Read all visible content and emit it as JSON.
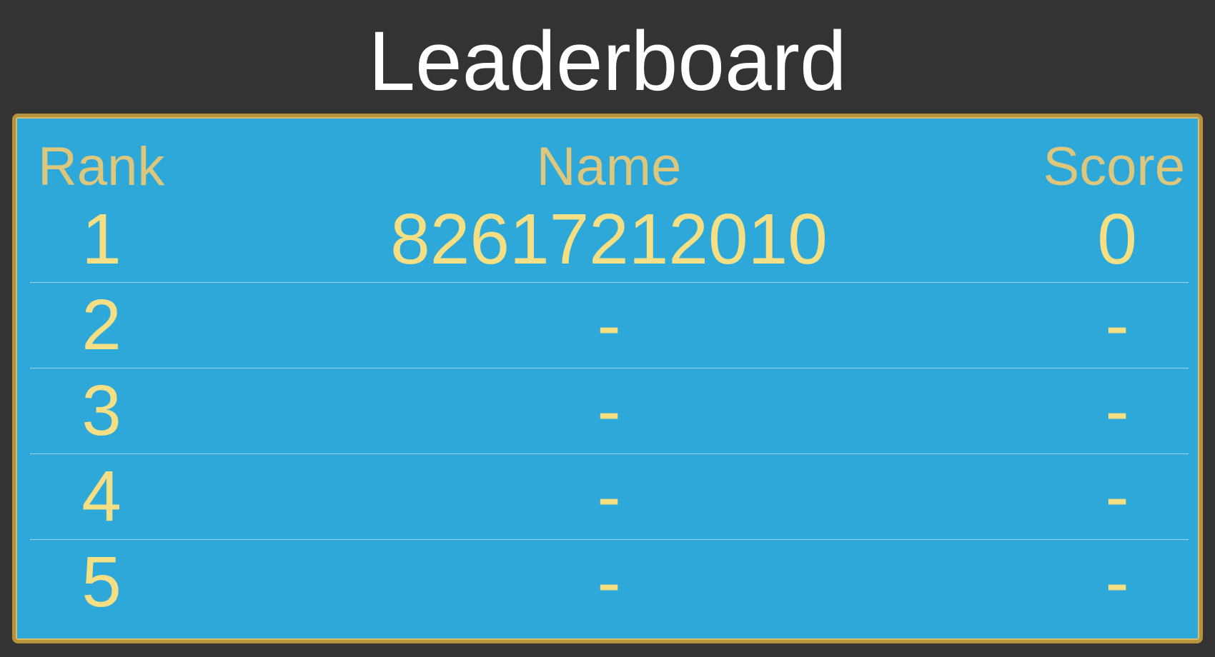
{
  "title": "Leaderboard",
  "columns": {
    "rank": "Rank",
    "name": "Name",
    "score": "Score"
  },
  "rows": [
    {
      "rank": "1",
      "name": "82617212010",
      "score": "0"
    },
    {
      "rank": "2",
      "name": "-",
      "score": "-"
    },
    {
      "rank": "3",
      "name": "-",
      "score": "-"
    },
    {
      "rank": "4",
      "name": "-",
      "score": "-"
    },
    {
      "rank": "5",
      "name": "-",
      "score": "-"
    }
  ],
  "colors": {
    "background": "#333333",
    "panel": "#2ea7d9",
    "border": "#b8933e",
    "header_text": "#dcc77c",
    "row_text": "#f4df84",
    "title_text": "#ffffff"
  }
}
